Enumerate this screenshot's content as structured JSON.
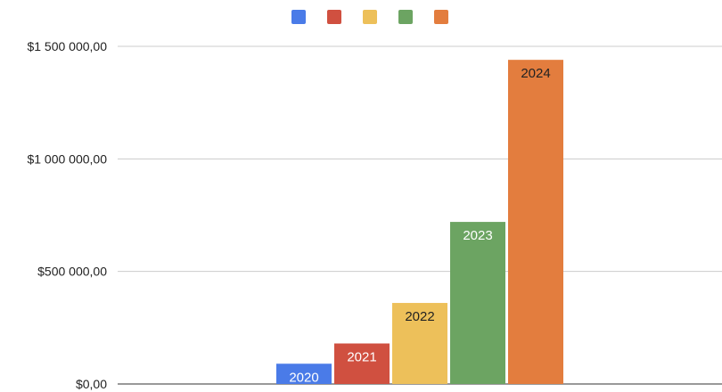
{
  "chart_data": {
    "type": "bar",
    "title": "",
    "xlabel": "",
    "ylabel": "",
    "ylim": [
      0,
      1500000
    ],
    "y_ticks": [
      {
        "value": 0,
        "label": "$0,00"
      },
      {
        "value": 500000,
        "label": "$500 000,00"
      },
      {
        "value": 1000000,
        "label": "$1 000 000,00"
      },
      {
        "value": 1500000,
        "label": "$1 500 000,00"
      }
    ],
    "grid": true,
    "legend": "top-center",
    "series": [
      {
        "label": "2020",
        "value": 90000,
        "color": "#4a7be8",
        "label_color": "#ffffff"
      },
      {
        "label": "2021",
        "value": 180000,
        "color": "#d05040",
        "label_color": "#ffffff"
      },
      {
        "label": "2022",
        "value": 360000,
        "color": "#edc05a",
        "label_color": "#222222"
      },
      {
        "label": "2023",
        "value": 720000,
        "color": "#6ca462",
        "label_color": "#ffffff"
      },
      {
        "label": "2024",
        "value": 1440000,
        "color": "#e37d3e",
        "label_color": "#222222"
      }
    ]
  }
}
